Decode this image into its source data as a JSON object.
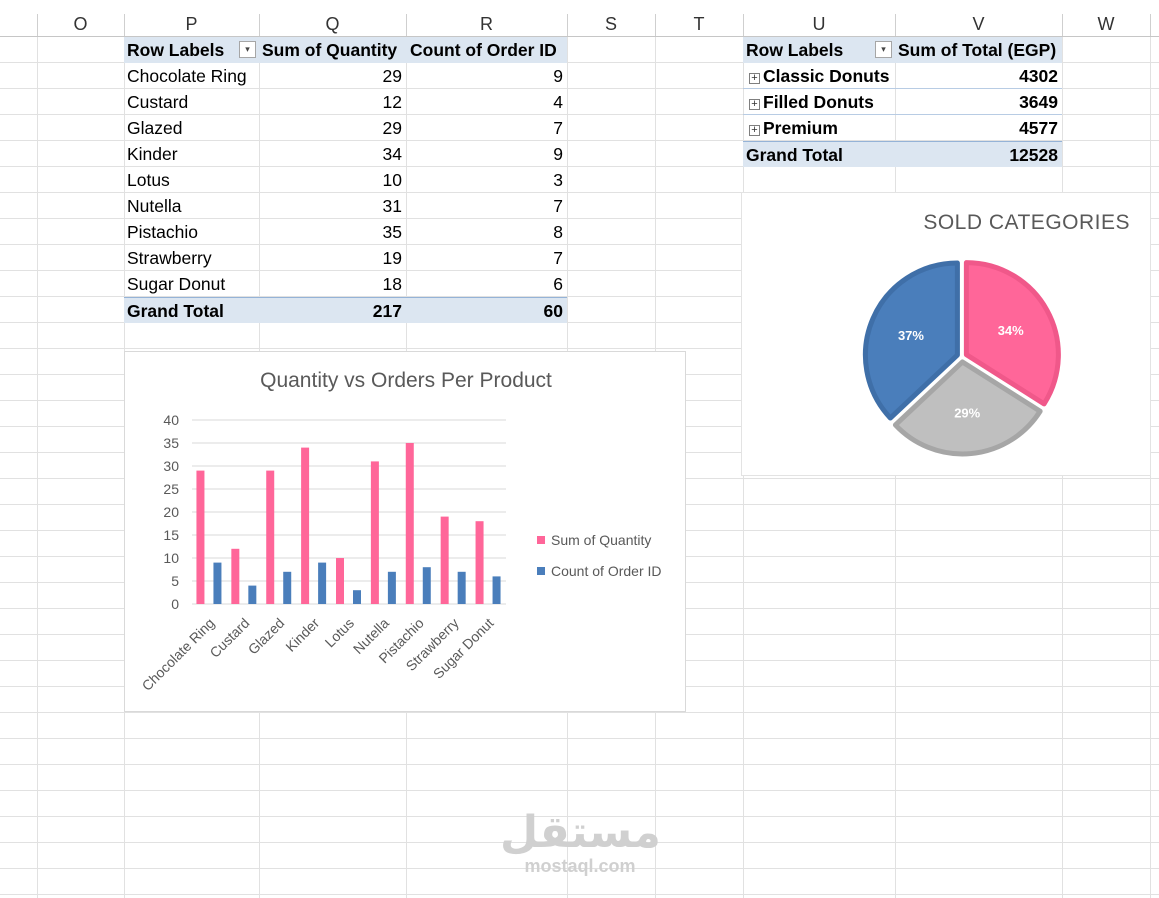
{
  "columns": [
    "O",
    "P",
    "Q",
    "R",
    "S",
    "T",
    "U",
    "V",
    "W"
  ],
  "pivot1": {
    "headers": [
      "Row Labels",
      "Sum of Quantity",
      "Count of Order ID"
    ],
    "rows": [
      {
        "label": "Chocolate Ring",
        "qty": "29",
        "count": "9"
      },
      {
        "label": "Custard",
        "qty": "12",
        "count": "4"
      },
      {
        "label": "Glazed",
        "qty": "29",
        "count": "7"
      },
      {
        "label": "Kinder",
        "qty": "34",
        "count": "9"
      },
      {
        "label": "Lotus",
        "qty": "10",
        "count": "3"
      },
      {
        "label": "Nutella",
        "qty": "31",
        "count": "7"
      },
      {
        "label": "Pistachio",
        "qty": "35",
        "count": "8"
      },
      {
        "label": "Strawberry",
        "qty": "19",
        "count": "7"
      },
      {
        "label": "Sugar Donut",
        "qty": "18",
        "count": "6"
      }
    ],
    "total": {
      "label": "Grand Total",
      "qty": "217",
      "count": "60"
    }
  },
  "pivot2": {
    "headers": [
      "Row Labels",
      "Sum of Total (EGP)"
    ],
    "rows": [
      {
        "label": "Classic Donuts",
        "value": "4302"
      },
      {
        "label": "Filled Donuts",
        "value": "3649"
      },
      {
        "label": "Premium",
        "value": "4577"
      }
    ],
    "total": {
      "label": "Grand Total",
      "value": "12528"
    }
  },
  "chart_data": [
    {
      "type": "bar",
      "title": "Quantity vs Orders Per Product",
      "categories": [
        "Chocolate Ring",
        "Custard",
        "Glazed",
        "Kinder",
        "Lotus",
        "Nutella",
        "Pistachio",
        "Strawberry",
        "Sugar Donut"
      ],
      "series": [
        {
          "name": "Sum of Quantity",
          "values": [
            29,
            12,
            29,
            34,
            10,
            31,
            35,
            19,
            18
          ],
          "color": "#ff6699"
        },
        {
          "name": "Count of Order ID",
          "values": [
            9,
            4,
            7,
            9,
            3,
            7,
            8,
            7,
            6
          ],
          "color": "#4a7ebb"
        }
      ],
      "yticks": [
        "0",
        "5",
        "10",
        "15",
        "20",
        "25",
        "30",
        "35",
        "40"
      ],
      "ylim": [
        0,
        40
      ],
      "grid": true,
      "legend": "right"
    },
    {
      "type": "pie",
      "title": "SOLD CATEGORIES",
      "slices": [
        {
          "label": "34%",
          "value": 34,
          "color": "#ff6699",
          "border": "#f0588a"
        },
        {
          "label": "29%",
          "value": 29,
          "color": "#bfbfbf",
          "border": "#a6a6a6"
        },
        {
          "label": "37%",
          "value": 37,
          "color": "#4a7ebb",
          "border": "#3f6fa8"
        }
      ]
    }
  ],
  "watermark": {
    "arabic": "مستقل",
    "latin": "mostaql.com"
  }
}
